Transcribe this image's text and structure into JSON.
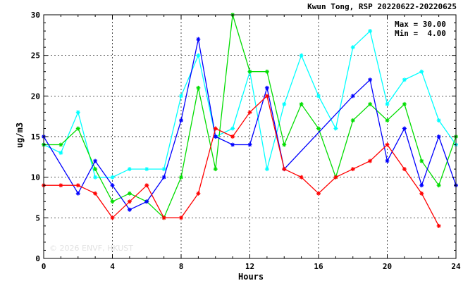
{
  "chart_data": {
    "type": "line",
    "title": "Kwun Tong, RSP 20220622-20220625",
    "xlabel": "Hours",
    "ylabel": "ug/m3",
    "xlim": [
      0,
      24
    ],
    "ylim": [
      0,
      30
    ],
    "xticks": [
      0,
      4,
      8,
      12,
      16,
      20,
      24
    ],
    "yticks": [
      0,
      5,
      10,
      15,
      20,
      25,
      30
    ],
    "grid": true,
    "stats": {
      "max_label": "Max = 30.00",
      "min_label": "Min =  4.00"
    },
    "watermark": "© 2026 ENVF, HKUST",
    "series": [
      {
        "color": "#00ffff",
        "points": [
          [
            0,
            14
          ],
          [
            1,
            13
          ],
          [
            2,
            18
          ],
          [
            3,
            10
          ],
          [
            4,
            10
          ],
          [
            5,
            11
          ],
          [
            6,
            11
          ],
          [
            7,
            11
          ],
          [
            8,
            20
          ],
          [
            9,
            25
          ],
          [
            10,
            15
          ],
          [
            11,
            16
          ],
          [
            12,
            23
          ],
          [
            13,
            11
          ],
          [
            14,
            19
          ],
          [
            15,
            25
          ],
          [
            16,
            20
          ],
          [
            17,
            16
          ],
          [
            18,
            26
          ],
          [
            19,
            28
          ],
          [
            20,
            19
          ],
          [
            21,
            22
          ],
          [
            22,
            23
          ],
          [
            23,
            17
          ],
          [
            24,
            14
          ]
        ]
      },
      {
        "color": "#00dd00",
        "points": [
          [
            0,
            14
          ],
          [
            1,
            14
          ],
          [
            2,
            16
          ],
          [
            3,
            11
          ],
          [
            4,
            7
          ],
          [
            5,
            8
          ],
          [
            6,
            7
          ],
          [
            7,
            5
          ],
          [
            8,
            10
          ],
          [
            9,
            21
          ],
          [
            10,
            11
          ],
          [
            11,
            30
          ],
          [
            12,
            23
          ],
          [
            13,
            23
          ],
          [
            14,
            14
          ],
          [
            15,
            19
          ],
          [
            16,
            16
          ],
          [
            17,
            10
          ],
          [
            18,
            17
          ],
          [
            19,
            19
          ],
          [
            20,
            17
          ],
          [
            21,
            19
          ],
          [
            22,
            12
          ],
          [
            23,
            9
          ],
          [
            24,
            15
          ]
        ]
      },
      {
        "color": "#0000ff",
        "points": [
          [
            0,
            15
          ],
          [
            2,
            8
          ],
          [
            3,
            12
          ],
          [
            4,
            9
          ],
          [
            5,
            6
          ],
          [
            6,
            7
          ],
          [
            7,
            10
          ],
          [
            8,
            17
          ],
          [
            9,
            27
          ],
          [
            10,
            15
          ],
          [
            11,
            14
          ],
          [
            12,
            14
          ],
          [
            13,
            21
          ],
          [
            14,
            11
          ],
          [
            18,
            20
          ],
          [
            19,
            22
          ],
          [
            20,
            12
          ],
          [
            21,
            16
          ],
          [
            22,
            9
          ],
          [
            23,
            15
          ],
          [
            24,
            9
          ]
        ]
      },
      {
        "color": "#ff0000",
        "points": [
          [
            0,
            9
          ],
          [
            1,
            9
          ],
          [
            2,
            9
          ],
          [
            3,
            8
          ],
          [
            4,
            5
          ],
          [
            5,
            7
          ],
          [
            6,
            9
          ],
          [
            7,
            5
          ],
          [
            8,
            5
          ],
          [
            9,
            8
          ],
          [
            10,
            16
          ],
          [
            11,
            15
          ],
          [
            12,
            18
          ],
          [
            13,
            20
          ],
          [
            14,
            11
          ],
          [
            15,
            10
          ],
          [
            16,
            8
          ],
          [
            17,
            10
          ],
          [
            18,
            11
          ],
          [
            19,
            12
          ],
          [
            20,
            14
          ],
          [
            21,
            11
          ],
          [
            22,
            8
          ],
          [
            23,
            4
          ]
        ]
      }
    ]
  }
}
